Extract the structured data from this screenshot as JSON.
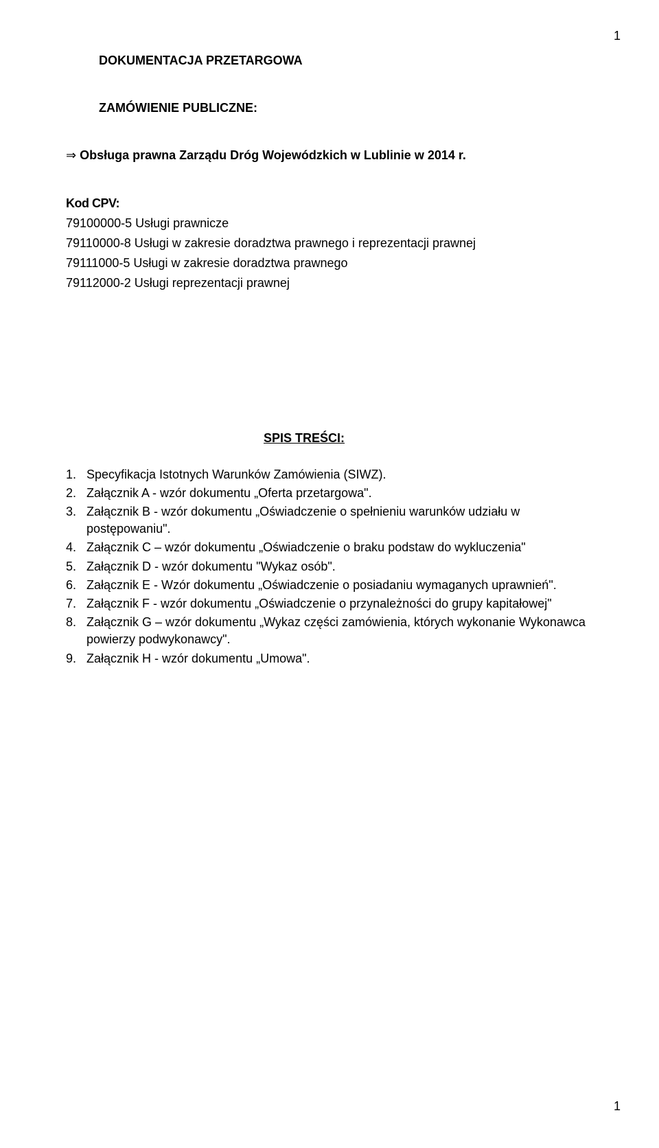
{
  "page_number_top": "1",
  "page_number_bottom": "1",
  "doc_title": "DOKUMENTACJA PRZETARGOWA",
  "order_label": "ZAMÓWIENIE PUBLICZNE:",
  "arrow_symbol": "⇒",
  "order_text": "Obsługa prawna Zarządu Dróg Wojewódzkich w Lublinie w 2014 r.",
  "kod_label": "Kod CPV:",
  "cpv_lines": [
    "79100000-5 Usługi prawnicze",
    "79110000-8 Usługi w zakresie doradztwa prawnego i reprezentacji prawnej",
    "79111000-5 Usługi w zakresie doradztwa prawnego",
    "79112000-2 Usługi reprezentacji prawnej"
  ],
  "toc_title": "SPIS TREŚCI:",
  "toc": [
    {
      "n": "1.",
      "text": "Specyfikacja Istotnych Warunków Zamówienia (SIWZ)."
    },
    {
      "n": "2.",
      "text": "Załącznik A - wzór dokumentu „Oferta przetargowa\"."
    },
    {
      "n": "3.",
      "text": "Załącznik B - wzór dokumentu „Oświadczenie o spełnieniu warunków udziału w postępowaniu\"."
    },
    {
      "n": "4.",
      "text": "Załącznik C – wzór dokumentu „Oświadczenie o braku podstaw do wykluczenia\""
    },
    {
      "n": "5.",
      "text": "Załącznik D - wzór dokumentu \"Wykaz osób\"."
    },
    {
      "n": "6.",
      "text": "Załącznik E - Wzór dokumentu „Oświadczenie o posiadaniu wymaganych uprawnień\"."
    },
    {
      "n": "7.",
      "text": "Załącznik F - wzór dokumentu „Oświadczenie o przynależności do grupy kapitałowej\""
    },
    {
      "n": "8.",
      "text": "Załącznik G – wzór dokumentu „Wykaz części zamówienia, których wykonanie Wykonawca powierzy podwykonawcy\"."
    },
    {
      "n": "9.",
      "text": "Załącznik H - wzór dokumentu „Umowa\"."
    }
  ]
}
